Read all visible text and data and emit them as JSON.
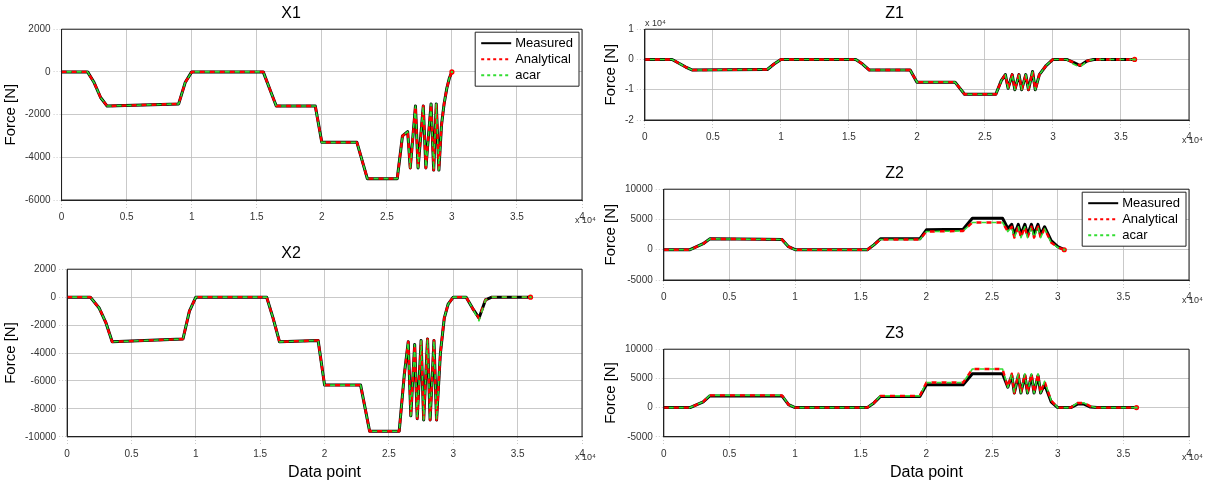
{
  "chart_data": [
    {
      "type": "line",
      "title": "X1",
      "ylabel": "Force [N]",
      "annotations": [
        "x 10⁴"
      ],
      "legend": "top right",
      "grid": true,
      "xlim": [
        0,
        4
      ],
      "xticks": [
        0,
        0.5,
        1,
        1.5,
        2,
        2.5,
        3,
        3.5,
        4
      ],
      "ylim": [
        -6000,
        2000
      ],
      "yticks": [
        -6000,
        -4000,
        -2000,
        0,
        2000
      ],
      "x": [
        0,
        0.2,
        0.25,
        0.3,
        0.35,
        0.9,
        0.95,
        1.0,
        1.55,
        1.6,
        1.65,
        1.95,
        2.0,
        2.27,
        2.35,
        2.58,
        2.62,
        2.66,
        2.68,
        2.72,
        2.74,
        2.78,
        2.8,
        2.84,
        2.86,
        2.88,
        2.9,
        2.92,
        2.94,
        2.96,
        2.98,
        3.0
      ],
      "series": [
        {
          "name": "Measured",
          "color": "#000000",
          "line_style": "solid",
          "values": [
            0,
            0,
            -500,
            -1200,
            -1600,
            -1500,
            -500,
            0,
            0,
            -800,
            -1600,
            -1600,
            -3300,
            -3300,
            -5000,
            -5000,
            -3000,
            -2800,
            -4500,
            -1600,
            -4500,
            -1600,
            -4500,
            -1500,
            -4600,
            -1500,
            -4600,
            -2500,
            -1500,
            -800,
            -300,
            0
          ]
        },
        {
          "name": "Analytical",
          "color": "#ff0000",
          "line_style": "dashed",
          "values": [
            0,
            0,
            -500,
            -1200,
            -1600,
            -1500,
            -500,
            0,
            0,
            -800,
            -1600,
            -1600,
            -3300,
            -3300,
            -5000,
            -5000,
            -3000,
            -2800,
            -4500,
            -1600,
            -4500,
            -1600,
            -4500,
            -1500,
            -4600,
            -1500,
            -4600,
            -2500,
            -1500,
            -800,
            -300,
            0
          ]
        },
        {
          "name": "acar",
          "color": "#33dd33",
          "line_style": "dashed",
          "values": [
            0,
            0,
            -500,
            -1200,
            -1600,
            -1500,
            -500,
            0,
            0,
            -800,
            -1600,
            -1600,
            -3300,
            -3300,
            -5000,
            -5000,
            -3000,
            -2800,
            -4500,
            -1600,
            -4500,
            -1600,
            -4500,
            -1500,
            -4600,
            -1500,
            -4600,
            -2500,
            -1500,
            -800,
            -300,
            0
          ]
        }
      ]
    },
    {
      "type": "line",
      "title": "X2",
      "xlabel": "Data point",
      "ylabel": "Force [N]",
      "annotations": [
        "x 10⁴"
      ],
      "grid": true,
      "xlim": [
        0,
        4
      ],
      "xticks": [
        0,
        0.5,
        1,
        1.5,
        2,
        2.5,
        3,
        3.5,
        4
      ],
      "ylim": [
        -10000,
        2000
      ],
      "yticks": [
        -10000,
        -8000,
        -6000,
        -4000,
        -2000,
        0,
        2000
      ],
      "x": [
        0,
        0.18,
        0.25,
        0.3,
        0.35,
        0.9,
        0.95,
        1.0,
        1.55,
        1.6,
        1.65,
        1.95,
        2.0,
        2.28,
        2.35,
        2.58,
        2.62,
        2.65,
        2.67,
        2.7,
        2.72,
        2.75,
        2.77,
        2.8,
        2.82,
        2.85,
        2.87,
        2.9,
        2.93,
        2.96,
        3.0,
        3.1,
        3.15,
        3.2,
        3.25,
        3.3,
        3.6
      ],
      "series": [
        {
          "color": "#000000",
          "line_style": "solid",
          "values": [
            0,
            0,
            -800,
            -1800,
            -3200,
            -3000,
            -1000,
            0,
            0,
            -1500,
            -3200,
            -3100,
            -6300,
            -6300,
            -9600,
            -9600,
            -5500,
            -3200,
            -8500,
            -3400,
            -8700,
            -3100,
            -8800,
            -3000,
            -8800,
            -3100,
            -8800,
            -4000,
            -1500,
            -500,
            0,
            0,
            -800,
            -1500,
            -200,
            0,
            0
          ]
        },
        {
          "color": "#ff0000",
          "line_style": "dashed",
          "values": [
            0,
            0,
            -800,
            -1800,
            -3200,
            -3000,
            -1000,
            0,
            0,
            -1500,
            -3200,
            -3100,
            -6300,
            -6300,
            -9600,
            -9600,
            -5500,
            -3200,
            -8500,
            -3400,
            -8700,
            -3100,
            -8800,
            -3000,
            -8800,
            -3100,
            -8800,
            -4000,
            -1500,
            -500,
            0,
            0,
            -800,
            -1500,
            -200,
            0,
            0
          ]
        },
        {
          "color": "#33dd33",
          "line_style": "dashed",
          "values": [
            0,
            0,
            -800,
            -1800,
            -3200,
            -3000,
            -1000,
            0,
            0,
            -1500,
            -3200,
            -3100,
            -6300,
            -6300,
            -9600,
            -9600,
            -5500,
            -3200,
            -8500,
            -3400,
            -8700,
            -3100,
            -8800,
            -3000,
            -8800,
            -3100,
            -8800,
            -4000,
            -1500,
            -500,
            0,
            0,
            -800,
            -1700,
            -200,
            0,
            0
          ]
        }
      ]
    },
    {
      "type": "line",
      "title": "Z1",
      "ylabel": "Force [N]",
      "annotations": [
        "x 10⁴",
        "x 10⁴"
      ],
      "grid": true,
      "xlim": [
        0,
        4
      ],
      "xticks": [
        0,
        0.5,
        1,
        1.5,
        2,
        2.5,
        3,
        3.5,
        4
      ],
      "ylim": [
        -2,
        1
      ],
      "yticks": [
        -2,
        -1,
        0,
        1
      ],
      "x": [
        0,
        0.2,
        0.3,
        0.35,
        0.9,
        0.95,
        1.0,
        1.55,
        1.6,
        1.65,
        1.95,
        2.0,
        2.28,
        2.35,
        2.58,
        2.62,
        2.65,
        2.67,
        2.7,
        2.72,
        2.75,
        2.77,
        2.8,
        2.82,
        2.85,
        2.87,
        2.9,
        2.95,
        3.0,
        3.1,
        3.15,
        3.2,
        3.25,
        3.3,
        3.6
      ],
      "series": [
        {
          "color": "#000000",
          "line_style": "solid",
          "values": [
            0,
            0,
            -0.25,
            -0.35,
            -0.33,
            -0.15,
            0,
            0,
            -0.15,
            -0.35,
            -0.35,
            -0.75,
            -0.75,
            -1.15,
            -1.15,
            -0.7,
            -0.5,
            -0.95,
            -0.5,
            -1.0,
            -0.5,
            -1.0,
            -0.5,
            -1.0,
            -0.4,
            -1.0,
            -0.5,
            -0.2,
            0,
            0,
            -0.1,
            -0.2,
            -0.05,
            0,
            0
          ]
        },
        {
          "color": "#ff0000",
          "line_style": "dashed",
          "values": [
            0,
            0,
            -0.25,
            -0.35,
            -0.33,
            -0.15,
            0,
            0,
            -0.15,
            -0.35,
            -0.35,
            -0.75,
            -0.75,
            -1.15,
            -1.15,
            -0.7,
            -0.5,
            -0.95,
            -0.5,
            -1.0,
            -0.5,
            -1.0,
            -0.5,
            -1.0,
            -0.4,
            -1.0,
            -0.5,
            -0.2,
            0,
            0,
            -0.1,
            -0.2,
            -0.05,
            0,
            0
          ]
        },
        {
          "color": "#33dd33",
          "line_style": "dashed",
          "values": [
            0,
            0,
            -0.25,
            -0.35,
            -0.33,
            -0.15,
            0,
            0,
            -0.15,
            -0.35,
            -0.35,
            -0.75,
            -0.75,
            -1.15,
            -1.15,
            -0.7,
            -0.5,
            -0.95,
            -0.5,
            -1.0,
            -0.5,
            -1.0,
            -0.5,
            -1.0,
            -0.4,
            -1.0,
            -0.5,
            -0.2,
            0,
            0,
            -0.15,
            -0.25,
            -0.05,
            0,
            0
          ]
        }
      ]
    },
    {
      "type": "line",
      "title": "Z2",
      "ylabel": "Force [N]",
      "annotations": [
        "x 10⁴"
      ],
      "legend": "top right",
      "grid": true,
      "xlim": [
        0,
        4
      ],
      "xticks": [
        0,
        0.5,
        1,
        1.5,
        2,
        2.5,
        3,
        3.5,
        4
      ],
      "ylim": [
        -5000,
        10000
      ],
      "yticks": [
        -5000,
        0,
        5000,
        10000
      ],
      "x": [
        0,
        0.2,
        0.3,
        0.35,
        0.9,
        0.95,
        1.0,
        1.55,
        1.6,
        1.65,
        1.95,
        2.0,
        2.28,
        2.35,
        2.58,
        2.62,
        2.65,
        2.67,
        2.7,
        2.72,
        2.75,
        2.77,
        2.8,
        2.82,
        2.85,
        2.87,
        2.9,
        2.95,
        3.0,
        3.05
      ],
      "series": [
        {
          "name": "Measured",
          "color": "#000000",
          "line_style": "solid",
          "values": [
            0,
            0,
            1000,
            1800,
            1700,
            500,
            0,
            0,
            800,
            1800,
            1800,
            3300,
            3400,
            5200,
            5200,
            3500,
            4200,
            2500,
            4200,
            2500,
            4200,
            2500,
            4200,
            2500,
            4200,
            2500,
            3800,
            1500,
            500,
            0
          ]
        },
        {
          "name": "Analytical",
          "color": "#ff0000",
          "line_style": "dashed",
          "values": [
            0,
            0,
            1000,
            1800,
            1700,
            500,
            0,
            0,
            800,
            1700,
            1700,
            3000,
            3100,
            4500,
            4500,
            3000,
            3800,
            2000,
            3800,
            2000,
            3800,
            2000,
            3800,
            2000,
            3800,
            2000,
            3500,
            1200,
            400,
            0
          ]
        },
        {
          "name": "acar",
          "color": "#33dd33",
          "line_style": "dashed",
          "values": [
            0,
            0,
            1000,
            1800,
            1700,
            500,
            0,
            0,
            800,
            1700,
            1700,
            3000,
            3100,
            4500,
            4500,
            3000,
            3800,
            2000,
            3800,
            2000,
            3800,
            2000,
            3800,
            2000,
            3800,
            2000,
            3500,
            1200,
            400,
            0
          ]
        }
      ]
    },
    {
      "type": "line",
      "title": "Z3",
      "xlabel": "Data point",
      "ylabel": "Force [N]",
      "annotations": [
        "x 10⁴"
      ],
      "grid": true,
      "xlim": [
        0,
        4
      ],
      "xticks": [
        0,
        0.5,
        1,
        1.5,
        2,
        2.5,
        3,
        3.5,
        4
      ],
      "ylim": [
        -5000,
        10000
      ],
      "yticks": [
        -5000,
        0,
        5000,
        10000
      ],
      "x": [
        0,
        0.2,
        0.3,
        0.35,
        0.9,
        0.95,
        1.0,
        1.55,
        1.6,
        1.65,
        1.95,
        2.0,
        2.28,
        2.35,
        2.58,
        2.62,
        2.65,
        2.67,
        2.7,
        2.72,
        2.75,
        2.77,
        2.8,
        2.82,
        2.85,
        2.87,
        2.9,
        2.95,
        3.0,
        3.1,
        3.15,
        3.2,
        3.25,
        3.3,
        3.6
      ],
      "series": [
        {
          "color": "#000000",
          "line_style": "solid",
          "values": [
            0,
            0,
            1000,
            2000,
            2000,
            500,
            0,
            0,
            800,
            1900,
            1900,
            3900,
            3900,
            5800,
            5800,
            3500,
            5500,
            2500,
            5500,
            2500,
            5500,
            2500,
            5500,
            2500,
            5500,
            2500,
            4000,
            1000,
            0,
            0,
            600,
            600,
            100,
            0,
            0
          ]
        },
        {
          "color": "#ff0000",
          "line_style": "dashed",
          "values": [
            0,
            0,
            1000,
            2100,
            2100,
            500,
            0,
            0,
            800,
            2000,
            2000,
            4300,
            4300,
            6600,
            6600,
            3500,
            5800,
            2500,
            5800,
            2500,
            5800,
            2500,
            5800,
            2500,
            5800,
            2500,
            4500,
            1200,
            0,
            0,
            800,
            800,
            200,
            0,
            0
          ]
        },
        {
          "color": "#33dd33",
          "line_style": "dashed",
          "values": [
            0,
            0,
            1000,
            2100,
            2100,
            500,
            0,
            0,
            800,
            2000,
            2000,
            4300,
            4300,
            6600,
            6600,
            3500,
            5800,
            2500,
            5800,
            2500,
            5800,
            2500,
            5800,
            2500,
            5800,
            2500,
            4500,
            1200,
            0,
            0,
            800,
            800,
            200,
            0,
            0
          ]
        }
      ]
    }
  ]
}
